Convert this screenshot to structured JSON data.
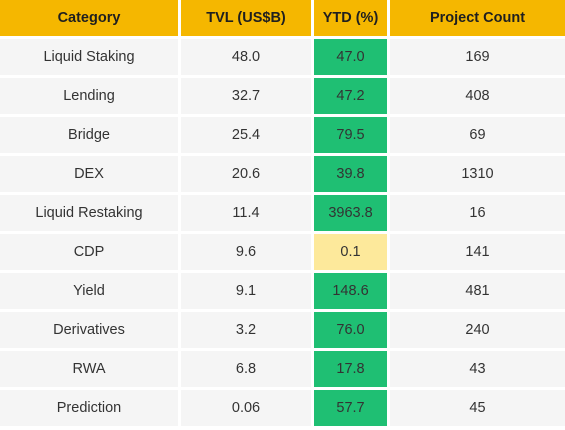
{
  "chart_data": {
    "type": "table",
    "columns": [
      "Category",
      "TVL (US$B)",
      "YTD (%)",
      "Project Count"
    ],
    "rows": [
      [
        "Liquid Staking",
        "48.0",
        "47.0",
        "169"
      ],
      [
        "Lending",
        "32.7",
        "47.2",
        "408"
      ],
      [
        "Bridge",
        "25.4",
        "79.5",
        "69"
      ],
      [
        "DEX",
        "20.6",
        "39.8",
        "1310"
      ],
      [
        "Liquid Restaking",
        "11.4",
        "3963.8",
        "16"
      ],
      [
        "CDP",
        "9.6",
        "0.1",
        "141"
      ],
      [
        "Yield",
        "9.1",
        "148.6",
        "481"
      ],
      [
        "Derivatives",
        "3.2",
        "76.0",
        "240"
      ],
      [
        "RWA",
        "6.8",
        "17.8",
        "43"
      ],
      [
        "Prediction",
        "0.06",
        "57.7",
        "45"
      ]
    ]
  },
  "colors": {
    "header_bg": "#f5b700",
    "row_bg": "#f5f5f5",
    "ytd_high": "#1fbf73",
    "ytd_low": "#fde99b",
    "border": "#ffffff"
  }
}
